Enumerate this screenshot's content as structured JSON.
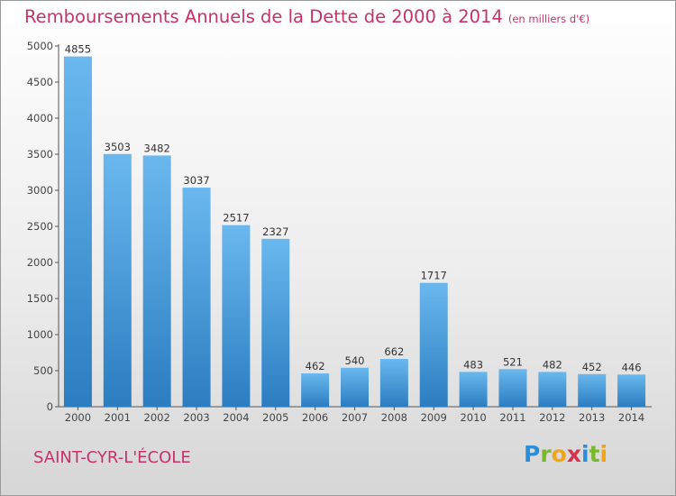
{
  "chart_data": {
    "type": "bar",
    "title": "Remboursements Annuels de la Dette de 2000 à 2014",
    "unit_note": "(en milliers d'€)",
    "categories": [
      "2000",
      "2001",
      "2002",
      "2003",
      "2004",
      "2005",
      "2006",
      "2007",
      "2008",
      "2009",
      "2010",
      "2011",
      "2012",
      "2013",
      "2014"
    ],
    "values": [
      4855,
      3503,
      3482,
      3037,
      2517,
      2327,
      462,
      540,
      662,
      1717,
      483,
      521,
      482,
      452,
      446
    ],
    "ylim": [
      0,
      5000
    ],
    "yticks": [
      0,
      500,
      1000,
      1500,
      2000,
      2500,
      3000,
      3500,
      4000,
      4500,
      5000
    ],
    "grid": false,
    "bar_color_top": "#6ab8ee",
    "bar_color_bottom": "#2b7dc1"
  },
  "place_name": "SAINT-CYR-L'ÉCOLE",
  "brand": {
    "letters": [
      {
        "char": "P",
        "color": "#2a8fd8"
      },
      {
        "char": "r",
        "color": "#7ab929"
      },
      {
        "char": "o",
        "color": "#f2a516"
      },
      {
        "char": "x",
        "color": "#d6334f"
      },
      {
        "char": "i",
        "color": "#2a8fd8"
      },
      {
        "char": "t",
        "color": "#7ab929"
      },
      {
        "char": "i",
        "color": "#f2a516"
      }
    ]
  },
  "colors": {
    "title": "#c4336a",
    "axis": "#555555"
  }
}
